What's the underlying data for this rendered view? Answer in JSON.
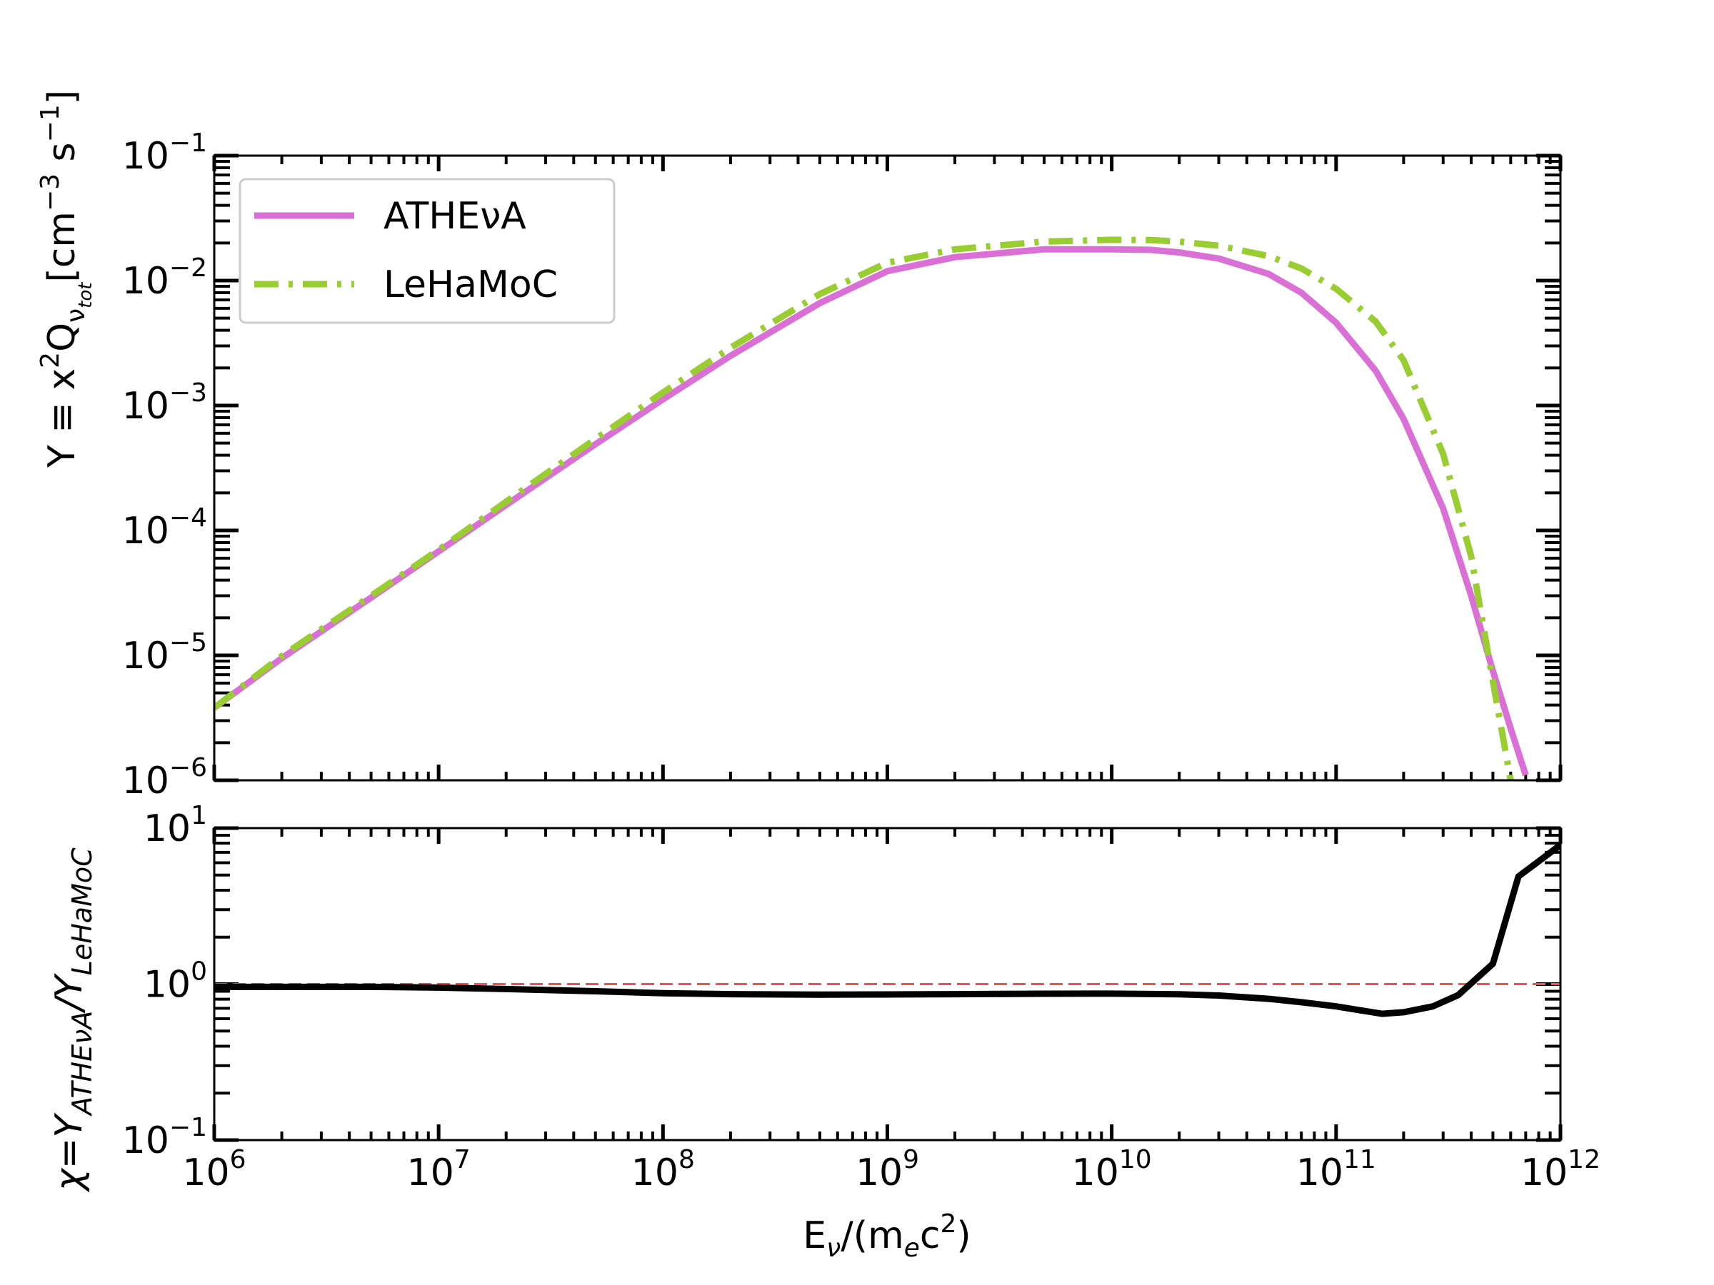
{
  "chart_data": [
    {
      "type": "line",
      "panel": "top",
      "scale": {
        "x": "log",
        "y": "log"
      },
      "xlim": [
        1000000,
        1000000000000
      ],
      "ylim": [
        1e-06,
        0.1
      ],
      "ylabel": {
        "main": "Y ≡  x",
        "sup": "2",
        "q": "Q",
        "nu": "ν",
        "subsub": "tot",
        "unit_open": "[cm",
        "unit_sup1": "−3",
        "unit_mid": " s",
        "unit_sup2": "−1",
        "unit_close": "]"
      },
      "yticks": [
        {
          "base": "10",
          "exp": "−1",
          "value": 0.1
        },
        {
          "base": "10",
          "exp": "−2",
          "value": 0.01
        },
        {
          "base": "10",
          "exp": "−3",
          "value": 0.001
        },
        {
          "base": "10",
          "exp": "−4",
          "value": 0.0001
        },
        {
          "base": "10",
          "exp": "−5",
          "value": 1e-05
        },
        {
          "base": "10",
          "exp": "−6",
          "value": 1e-06
        }
      ],
      "legend": {
        "position": "upper-left",
        "entries": [
          "ATHEνA",
          "LeHaMoC"
        ]
      },
      "series": [
        {
          "name": "ATHEνA",
          "color": "#da70d6",
          "style": "solid",
          "x": [
            1000000,
            2000000,
            5000000,
            10000000,
            20000000,
            50000000,
            100000000,
            200000000,
            500000000,
            1000000000,
            2000000000,
            5000000000,
            10000000000,
            15000000000,
            20000000000,
            30000000000,
            50000000000,
            70000000000,
            100000000000,
            150000000000,
            200000000000,
            300000000000,
            400000000000,
            500000000000,
            600000000000,
            700000000000
          ],
          "y": [
            3.8e-06,
            9.5e-06,
            2.9e-05,
            6.8e-05,
            0.00016,
            0.00049,
            0.00112,
            0.0025,
            0.0066,
            0.0119,
            0.0154,
            0.0178,
            0.0178,
            0.0176,
            0.0168,
            0.015,
            0.0113,
            0.008,
            0.0046,
            0.0019,
            0.00078,
            0.00015,
            3e-05,
            7.5e-06,
            2.6e-06,
            1.1e-06
          ]
        },
        {
          "name": "LeHaMoC",
          "color": "#9acd32",
          "style": "dashdot",
          "x": [
            1000000,
            2000000,
            5000000,
            10000000,
            20000000,
            50000000,
            100000000,
            200000000,
            500000000,
            1000000000,
            2000000000,
            5000000000,
            10000000000,
            15000000000,
            20000000000,
            30000000000,
            50000000000,
            70000000000,
            100000000000,
            150000000000,
            200000000000,
            300000000000,
            400000000000,
            500000000000,
            600000000000
          ],
          "y": [
            3.8e-06,
            9.9e-06,
            3e-05,
            7e-05,
            0.00017,
            0.00054,
            0.00127,
            0.0029,
            0.0078,
            0.0139,
            0.0178,
            0.0205,
            0.0212,
            0.0211,
            0.0205,
            0.019,
            0.0157,
            0.0125,
            0.0086,
            0.0047,
            0.0023,
            0.00041,
            6.2e-05,
            6.2e-06,
            1e-06
          ]
        }
      ]
    },
    {
      "type": "line",
      "panel": "bottom",
      "scale": {
        "x": "log",
        "y": "log"
      },
      "xlim": [
        1000000,
        1000000000000
      ],
      "ylim": [
        0.1,
        10
      ],
      "xlabel": {
        "e": "E",
        "nu": "ν",
        "rest": "/(m",
        "sub_e": "e",
        "c": "c",
        "sup": "2",
        "close": ")"
      },
      "ylabel": {
        "chi": "χ=Y",
        "sub1": "ATHEνA",
        "slash": "/Y",
        "sub2": "LeHaMoC"
      },
      "xticks": [
        {
          "base": "10",
          "exp": "6",
          "value": 1000000
        },
        {
          "base": "10",
          "exp": "7",
          "value": 10000000
        },
        {
          "base": "10",
          "exp": "8",
          "value": 100000000
        },
        {
          "base": "10",
          "exp": "9",
          "value": 1000000000
        },
        {
          "base": "10",
          "exp": "10",
          "value": 10000000000
        },
        {
          "base": "10",
          "exp": "11",
          "value": 100000000000
        },
        {
          "base": "10",
          "exp": "12",
          "value": 1000000000000
        }
      ],
      "yticks": [
        {
          "base": "10",
          "exp": "1",
          "value": 10
        },
        {
          "base": "10",
          "exp": "0",
          "value": 1
        },
        {
          "base": "10",
          "exp": "−1",
          "value": 0.1
        }
      ],
      "reference_line": {
        "y": 1,
        "color": "#f05050",
        "style": "dashed"
      },
      "series": [
        {
          "color": "#000000",
          "style": "solid",
          "x": [
            1000000,
            2000000,
            5000000,
            10000000,
            20000000,
            50000000,
            100000000,
            200000000,
            500000000,
            1000000000,
            2000000000,
            5000000000,
            10000000000,
            20000000000,
            30000000000,
            50000000000,
            70000000000,
            100000000000,
            160000000000,
            200000000000,
            270000000000,
            350000000000,
            500000000000,
            650000000000,
            1000000000000
          ],
          "y": [
            0.96,
            0.96,
            0.96,
            0.95,
            0.93,
            0.9,
            0.875,
            0.862,
            0.856,
            0.858,
            0.862,
            0.867,
            0.868,
            0.86,
            0.845,
            0.805,
            0.765,
            0.72,
            0.645,
            0.66,
            0.72,
            0.85,
            1.35,
            4.9,
            7.8
          ]
        }
      ]
    }
  ]
}
